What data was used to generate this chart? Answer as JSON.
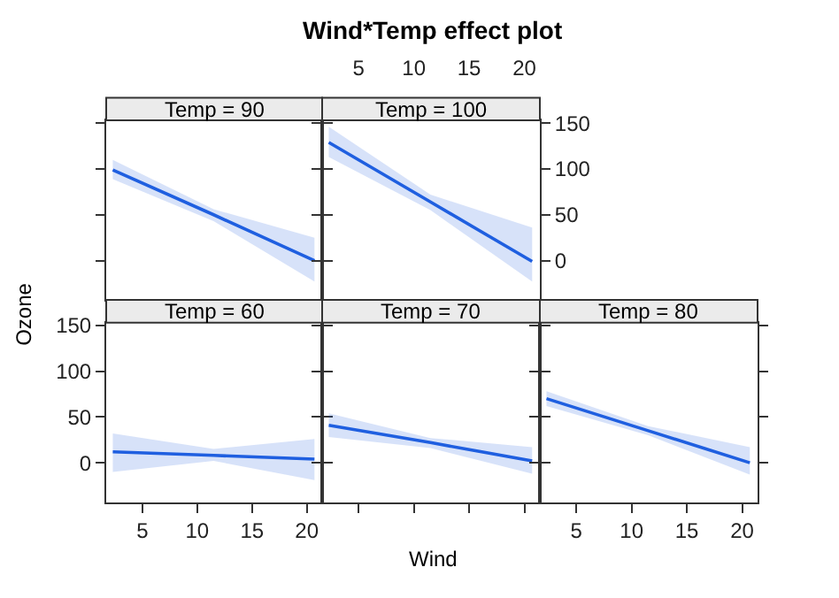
{
  "chart_data": [
    {
      "type": "line",
      "ylabel": "Ozone",
      "subtitle": "Temp = 90",
      "x": [
        2.3,
        11.5,
        20.7
      ],
      "xlim": [
        1.7,
        21.4
      ],
      "ylim": [
        -43,
        153
      ],
      "xticks": [
        5,
        10,
        15,
        20
      ],
      "yticks": [
        0,
        50,
        100,
        150
      ],
      "tick_labels": false,
      "grid": false,
      "series": [
        {
          "color": "#1f5fe0",
          "values": [
            99,
            50,
            0
          ],
          "lower": [
            89,
            43,
            -23
          ],
          "upper": [
            110,
            56,
            25
          ]
        }
      ]
    },
    {
      "type": "line",
      "title": "Wind*Temp effect plot",
      "subtitle": "Temp = 100",
      "x": [
        2.3,
        11.5,
        20.7
      ],
      "xlim": [
        1.7,
        21.4
      ],
      "ylim": [
        -43,
        153
      ],
      "xticks": [
        5,
        10,
        15,
        20
      ],
      "yticks": [
        0,
        50,
        100,
        150
      ],
      "grid": false,
      "series": [
        {
          "color": "#1f5fe0",
          "values": [
            129,
            64,
            -1
          ],
          "lower": [
            113,
            55,
            -23
          ],
          "upper": [
            146,
            72,
            36
          ]
        }
      ]
    },
    {
      "type": "line",
      "subtitle": "Temp = 60",
      "x": [
        2.3,
        11.5,
        20.7
      ],
      "xlim": [
        1.7,
        21.4
      ],
      "ylim": [
        -43,
        153
      ],
      "xticks": [
        5,
        10,
        15,
        20
      ],
      "yticks": [
        0,
        50,
        100,
        150
      ],
      "grid": false,
      "series": [
        {
          "color": "#1f5fe0",
          "values": [
            12,
            8,
            4
          ],
          "lower": [
            -10,
            2,
            -19
          ],
          "upper": [
            32,
            15,
            26
          ]
        }
      ]
    },
    {
      "type": "line",
      "xlabel": "Wind",
      "subtitle": "Temp = 70",
      "x": [
        2.3,
        11.5,
        20.7
      ],
      "xlim": [
        1.7,
        21.4
      ],
      "ylim": [
        -43,
        153
      ],
      "xticks": [
        5,
        10,
        15,
        20
      ],
      "yticks": [
        0,
        50,
        100,
        150
      ],
      "tick_labels": false,
      "grid": false,
      "series": [
        {
          "color": "#1f5fe0",
          "values": [
            41,
            22,
            2
          ],
          "lower": [
            28,
            16,
            -12
          ],
          "upper": [
            54,
            27,
            17
          ]
        }
      ]
    },
    {
      "type": "line",
      "subtitle": "Temp = 80",
      "x": [
        2.3,
        11.5,
        20.7
      ],
      "xlim": [
        1.7,
        21.4
      ],
      "ylim": [
        -43,
        153
      ],
      "xticks": [
        5,
        10,
        15,
        20
      ],
      "yticks": [
        0,
        50,
        100,
        150
      ],
      "tick_labels": "x",
      "grid": false,
      "series": [
        {
          "color": "#1f5fe0",
          "values": [
            70,
            35,
            0
          ],
          "lower": [
            62,
            30,
            -13
          ],
          "upper": [
            78,
            40,
            17
          ]
        }
      ]
    }
  ]
}
